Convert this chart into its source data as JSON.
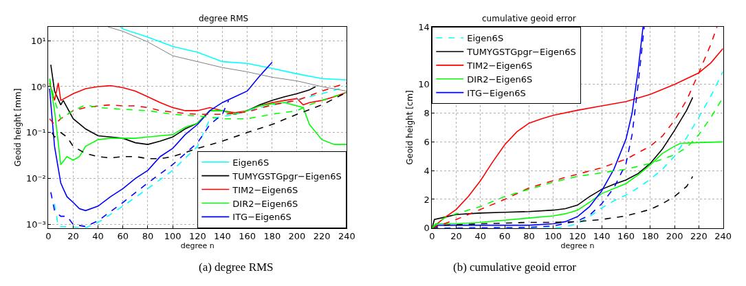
{
  "chart_data": [
    {
      "type": "line",
      "title": "degree RMS",
      "xlabel": "degree n",
      "ylabel": "Geoid height [mm]",
      "log": "y",
      "grid": true,
      "legend": "bottom right",
      "xlim": [
        0,
        240
      ],
      "xticks": [
        0,
        20,
        40,
        60,
        80,
        100,
        120,
        140,
        160,
        180,
        200,
        220,
        240
      ],
      "ylim": [
        0.00083,
        20
      ],
      "yticks": [
        {
          "value": 0.001,
          "label": "10⁻³"
        },
        {
          "value": 0.01,
          "label": "10⁻²"
        },
        {
          "value": 0.1,
          "label": "10⁻¹"
        },
        {
          "value": 1,
          "label": "10⁰"
        },
        {
          "value": 10,
          "label": "10¹"
        }
      ],
      "annotations": [
        "(a) degree RMS"
      ],
      "series": [
        {
          "name": "Eigen6S",
          "color": "#00ffff",
          "line_style": "solid",
          "x": [
            58,
            60,
            80,
            100,
            120,
            140,
            160,
            180,
            200,
            220,
            240
          ],
          "values": [
            20,
            18,
            12,
            7.5,
            5.6,
            3.5,
            3.2,
            2.5,
            1.9,
            1.5,
            1.4
          ]
        },
        {
          "name": "TUMYGSTGpgr−Eigen6S",
          "color": "#000000",
          "line_style": "solid",
          "x": [
            2,
            5,
            10,
            12,
            20,
            30,
            40,
            50,
            60,
            70,
            80,
            90,
            100,
            110,
            120,
            130,
            140,
            150,
            160,
            170,
            180,
            190,
            200,
            210,
            215
          ],
          "values": [
            3,
            0.8,
            0.4,
            0.5,
            0.2,
            0.12,
            0.085,
            0.08,
            0.075,
            0.06,
            0.055,
            0.065,
            0.08,
            0.12,
            0.16,
            0.3,
            0.3,
            0.25,
            0.3,
            0.4,
            0.5,
            0.6,
            0.7,
            0.85,
            1.0
          ]
        },
        {
          "name": "TIM2−Eigen6S",
          "color": "#ff0000",
          "line_style": "solid",
          "x": [
            1,
            5,
            8,
            10,
            20,
            30,
            40,
            50,
            60,
            70,
            80,
            90,
            100,
            110,
            120,
            130,
            140,
            150,
            160,
            170,
            180,
            190,
            200,
            205,
            210,
            220,
            230,
            240
          ],
          "values": [
            1.2,
            0.5,
            1.2,
            0.5,
            0.7,
            0.9,
            1.0,
            1.05,
            0.95,
            0.8,
            0.6,
            0.45,
            0.35,
            0.3,
            0.3,
            0.35,
            0.3,
            0.27,
            0.3,
            0.38,
            0.45,
            0.5,
            0.55,
            0.4,
            0.45,
            0.5,
            0.6,
            0.75
          ]
        },
        {
          "name": "DIR2−Eigen6S",
          "color": "#00ff00",
          "line_style": "solid",
          "x": [
            1,
            5,
            10,
            15,
            20,
            25,
            30,
            40,
            50,
            60,
            70,
            80,
            90,
            100,
            110,
            120,
            130,
            140,
            150,
            160,
            170,
            180,
            190,
            200,
            205,
            210,
            220,
            230,
            240
          ],
          "values": [
            1.4,
            0.3,
            0.02,
            0.03,
            0.025,
            0.03,
            0.05,
            0.07,
            0.075,
            0.075,
            0.075,
            0.08,
            0.085,
            0.09,
            0.13,
            0.16,
            0.3,
            0.3,
            0.25,
            0.3,
            0.38,
            0.42,
            0.45,
            0.38,
            0.35,
            0.15,
            0.07,
            0.055,
            0.055
          ]
        },
        {
          "name": "ITG−Eigen6S",
          "color": "#0000ff",
          "line_style": "solid",
          "x": [
            1,
            5,
            10,
            12,
            15,
            20,
            25,
            30,
            40,
            50,
            60,
            70,
            80,
            90,
            100,
            110,
            120,
            130,
            140,
            150,
            160,
            170,
            180
          ],
          "values": [
            0.9,
            0.05,
            0.008,
            0.006,
            0.004,
            0.003,
            0.0022,
            0.002,
            0.0025,
            0.004,
            0.006,
            0.01,
            0.015,
            0.03,
            0.045,
            0.09,
            0.15,
            0.3,
            0.45,
            0.6,
            0.8,
            1.7,
            3.4
          ]
        },
        {
          "color": "#00ffff",
          "line_style": "dashed",
          "x": [
            5,
            8,
            30,
            40,
            60,
            80,
            100,
            120,
            130,
            150,
            170,
            190,
            210,
            220,
            240
          ],
          "values": [
            0.0028,
            0.0009,
            0.00085,
            0.0011,
            0.0025,
            0.006,
            0.015,
            0.05,
            0.2,
            0.25,
            0.35,
            0.45,
            0.6,
            0.7,
            1.0
          ]
        },
        {
          "color": "#000000",
          "line_style": "dashed",
          "x": [
            3,
            5,
            10,
            15,
            20,
            30,
            40,
            50,
            60,
            70,
            80,
            90,
            100,
            120,
            140,
            160,
            180,
            200,
            220,
            240
          ],
          "values": [
            0.1,
            0.08,
            0.1,
            0.08,
            0.05,
            0.035,
            0.03,
            0.028,
            0.03,
            0.03,
            0.027,
            0.027,
            0.03,
            0.045,
            0.065,
            0.1,
            0.15,
            0.25,
            0.4,
            0.75
          ]
        },
        {
          "color": "#ff0000",
          "line_style": "dashed",
          "x": [
            1,
            5,
            10,
            20,
            30,
            40,
            50,
            60,
            70,
            80,
            90,
            100,
            110,
            120,
            140,
            160,
            180,
            200,
            220,
            240
          ],
          "values": [
            0.2,
            0.15,
            0.2,
            0.3,
            0.35,
            0.38,
            0.4,
            0.38,
            0.38,
            0.35,
            0.3,
            0.28,
            0.26,
            0.25,
            0.25,
            0.28,
            0.4,
            0.5,
            0.8,
            1.2
          ]
        },
        {
          "color": "#00ff00",
          "line_style": "dashed",
          "x": [
            1,
            5,
            10,
            20,
            30,
            40,
            60,
            80,
            100,
            120,
            140,
            160,
            180,
            200,
            210,
            220,
            240
          ],
          "values": [
            1.5,
            0.5,
            0.2,
            0.3,
            0.4,
            0.35,
            0.32,
            0.3,
            0.25,
            0.23,
            0.2,
            0.2,
            0.25,
            0.3,
            0.4,
            0.5,
            0.75
          ]
        },
        {
          "color": "#0000ff",
          "line_style": "dashed",
          "x": [
            2,
            5,
            10,
            15,
            20,
            30,
            40,
            60,
            80,
            100,
            120,
            130,
            140,
            145
          ],
          "values": [
            0.005,
            0.002,
            0.0015,
            0.0015,
            0.001,
            0.0009,
            0.0012,
            0.003,
            0.008,
            0.02,
            0.06,
            0.15,
            0.25,
            0.5
          ]
        },
        {
          "color": "#808080",
          "line_style": "solid",
          "x": [
            48,
            60,
            80,
            100,
            120,
            140,
            160,
            180,
            200,
            220,
            240
          ],
          "values": [
            20,
            16,
            9.4,
            4.7,
            3.5,
            2.6,
            2.1,
            1.6,
            1.33,
            1.0,
            0.8
          ]
        }
      ]
    },
    {
      "type": "line",
      "title": "cumulative geoid error",
      "xlabel": "degree n",
      "ylabel": "Geoid height [cm]",
      "grid": true,
      "legend": "top left",
      "xlim": [
        0,
        240
      ],
      "xticks": [
        0,
        20,
        40,
        60,
        80,
        100,
        120,
        140,
        160,
        180,
        200,
        220,
        240
      ],
      "ylim": [
        0,
        14
      ],
      "yticks": [
        0,
        2,
        4,
        6,
        8,
        10,
        14
      ],
      "annotations": [
        "(b) cumulative geoid error"
      ],
      "series": [
        {
          "name": "Eigen6S",
          "color": "#00ffff",
          "line_style": "dashed",
          "x": [
            0,
            100,
            110,
            120,
            130,
            140,
            150,
            160,
            170,
            180,
            190,
            200,
            210,
            220,
            230,
            240
          ],
          "values": [
            0,
            0,
            0.1,
            0.3,
            0.8,
            1.4,
            1.9,
            2.3,
            2.8,
            3.4,
            4.1,
            5.0,
            6.3,
            7.7,
            9.2,
            10.9
          ]
        },
        {
          "name": "TUMYGSTGpgr−Eigen6S",
          "color": "#000000",
          "line_style": "solid",
          "x": [
            0,
            2,
            10,
            20,
            40,
            60,
            80,
            100,
            110,
            120,
            130,
            140,
            150,
            160,
            170,
            180,
            190,
            200,
            210,
            215
          ],
          "values": [
            0,
            0.6,
            0.75,
            0.95,
            1.05,
            1.1,
            1.15,
            1.25,
            1.35,
            1.6,
            2.2,
            2.7,
            3.05,
            3.35,
            3.8,
            4.5,
            5.5,
            6.8,
            8.2,
            9.1
          ]
        },
        {
          "name": "TIM2−Eigen6S",
          "color": "#ff0000",
          "line_style": "solid",
          "x": [
            0,
            10,
            20,
            30,
            40,
            50,
            60,
            70,
            80,
            90,
            100,
            120,
            140,
            160,
            180,
            200,
            220,
            230,
            240
          ],
          "values": [
            0,
            0.7,
            1.3,
            2.2,
            3.3,
            4.6,
            5.8,
            6.7,
            7.3,
            7.6,
            7.85,
            8.2,
            8.5,
            8.8,
            9.3,
            10.0,
            10.8,
            11.5,
            12.5
          ]
        },
        {
          "name": "DIR2−Eigen6S",
          "color": "#00ff00",
          "line_style": "solid",
          "x": [
            0,
            3,
            20,
            40,
            60,
            80,
            100,
            110,
            120,
            130,
            140,
            150,
            160,
            170,
            180,
            190,
            200,
            205,
            220,
            240
          ],
          "values": [
            0,
            0.3,
            0.3,
            0.4,
            0.55,
            0.7,
            0.85,
            1.0,
            1.25,
            1.8,
            2.4,
            2.75,
            3.1,
            3.7,
            4.4,
            5.2,
            5.7,
            5.9,
            5.95,
            6.0
          ]
        },
        {
          "name": "ITG−Eigen6S",
          "color": "#0000ff",
          "line_style": "solid",
          "x": [
            0,
            5,
            40,
            80,
            100,
            110,
            120,
            130,
            140,
            150,
            160,
            165,
            170,
            174
          ],
          "values": [
            0,
            0.2,
            0.2,
            0.2,
            0.3,
            0.45,
            0.8,
            1.5,
            2.6,
            4.1,
            6.2,
            8.0,
            11.0,
            14
          ]
        },
        {
          "color": "#0000ff",
          "line_style": "dashed",
          "x": [
            0,
            80,
            100,
            120,
            130,
            140,
            150,
            160,
            165,
            170,
            175
          ],
          "values": [
            0,
            0.05,
            0.15,
            0.5,
            0.9,
            1.7,
            2.8,
            4.5,
            6.5,
            10.0,
            14
          ]
        },
        {
          "color": "#000000",
          "line_style": "dashed",
          "x": [
            0,
            10,
            40,
            80,
            100,
            120,
            140,
            160,
            180,
            190,
            200,
            210,
            215
          ],
          "values": [
            0,
            0.2,
            0.3,
            0.4,
            0.4,
            0.45,
            0.6,
            0.85,
            1.3,
            1.7,
            2.2,
            2.9,
            3.6
          ]
        },
        {
          "color": "#ff0000",
          "line_style": "dashed",
          "x": [
            0,
            10,
            20,
            40,
            60,
            80,
            100,
            120,
            140,
            160,
            180,
            190,
            200,
            210,
            220,
            230,
            235
          ],
          "values": [
            0,
            0.3,
            0.6,
            1.3,
            2.0,
            2.8,
            3.3,
            3.75,
            4.2,
            4.8,
            5.7,
            6.4,
            7.5,
            8.9,
            10.8,
            12.8,
            14
          ]
        },
        {
          "color": "#00ff00",
          "line_style": "dashed",
          "x": [
            0,
            10,
            20,
            40,
            60,
            80,
            100,
            120,
            140,
            160,
            180,
            200,
            210,
            220,
            230,
            240
          ],
          "values": [
            0,
            0.7,
            1.0,
            1.5,
            2.2,
            2.7,
            3.2,
            3.6,
            3.85,
            4.1,
            4.5,
            5.1,
            5.6,
            6.5,
            7.7,
            9.1
          ]
        }
      ]
    }
  ]
}
